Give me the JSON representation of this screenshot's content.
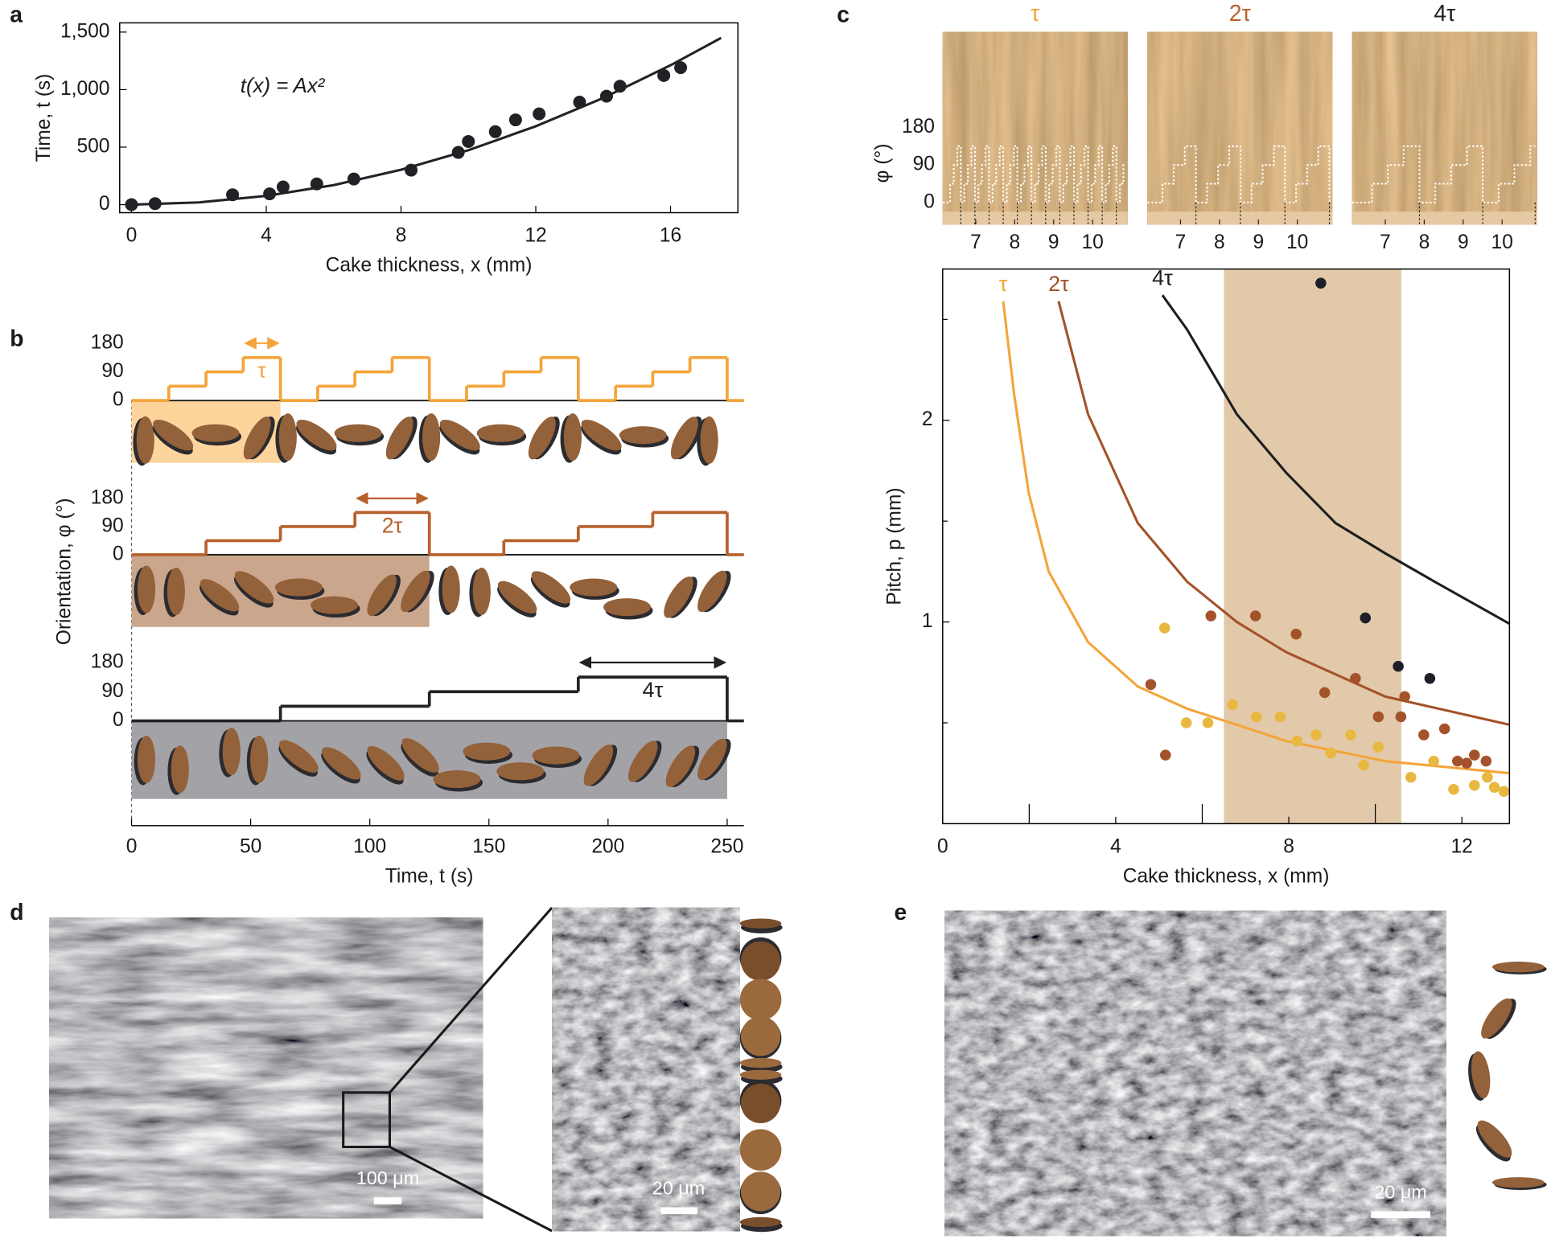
{
  "panel_labels": [
    "a",
    "b",
    "c",
    "d",
    "e"
  ],
  "chart_data": [
    {
      "type": "scatter",
      "xlabel": "Cake thickness, x (mm)",
      "ylabel": "Time, t (s)",
      "annotation": "t(x) = Ax²",
      "xlim": [
        -0.35,
        18
      ],
      "ylim": [
        -70,
        1580
      ],
      "xticks": [
        0,
        4,
        8,
        12,
        16
      ],
      "yticks": [
        0,
        500,
        {
          "value": 1000,
          "label": "1,000"
        },
        {
          "value": 1500,
          "label": "1,500"
        }
      ],
      "series": [
        {
          "mark": "point",
          "color": "#222226",
          "x": [
            0,
            0.7,
            3.0,
            4.1,
            4.5,
            5.5,
            6.6,
            8.3,
            9.7,
            10.0,
            10.8,
            11.4,
            12.1,
            13.3,
            14.1,
            14.5,
            15.8,
            16.3
          ],
          "values": [
            0,
            9,
            86,
            94,
            154,
            180,
            223,
            300,
            454,
            549,
            634,
            737,
            789,
            891,
            943,
            1029,
            1123,
            1191
          ]
        },
        {
          "mark": "line",
          "color": "#222226",
          "x": [
            0,
            2,
            4,
            6,
            8,
            10,
            12,
            14,
            16,
            17.5
          ],
          "values": [
            0,
            19,
            76,
            170,
            303,
            473,
            681,
            927,
            1211,
            1449
          ]
        }
      ]
    },
    {
      "type": "step",
      "xlabel": "Time, t (s)",
      "ylabel": "Orientation, φ (°)",
      "xlim": [
        0,
        257
      ],
      "xticks": [
        0,
        50,
        100,
        150,
        200,
        250
      ],
      "panels": [
        {
          "label": "τ",
          "color": "#f4a43a",
          "shade": "#fdd49c",
          "ylim": [
            0,
            180
          ],
          "yticks": [
            0,
            90,
            180
          ],
          "x": [
            0,
            15.625,
            31.25,
            46.875,
            62.5,
            78.125,
            93.75,
            109.375,
            125,
            140.625,
            156.25,
            171.875,
            187.5,
            203.125,
            218.75,
            234.375,
            250
          ],
          "values": [
            0,
            45,
            90,
            135,
            0,
            45,
            90,
            135,
            0,
            45,
            90,
            135,
            0,
            45,
            90,
            135,
            0
          ]
        },
        {
          "label": "2τ",
          "color": "#b8602c",
          "shade": "#c9a68c",
          "ylim": [
            0,
            180
          ],
          "yticks": [
            0,
            90,
            180
          ],
          "x": [
            0,
            31.25,
            62.5,
            93.75,
            125,
            156.25,
            187.5,
            218.75,
            250
          ],
          "values": [
            0,
            45,
            90,
            135,
            0,
            45,
            90,
            135,
            0
          ]
        },
        {
          "label": "4τ",
          "color": "#222226",
          "shade": "#a3a3a7",
          "ylim": [
            0,
            180
          ],
          "yticks": [
            0,
            90,
            180
          ],
          "x": [
            0,
            62.5,
            125,
            187.5,
            250
          ],
          "values": [
            0,
            45,
            90,
            135,
            0
          ]
        }
      ]
    },
    {
      "type": "photo",
      "ylabel": "φ (°)",
      "xlim": [
        6.15,
        10.9
      ],
      "ylim": [
        -53,
        410
      ],
      "xticks": [
        7,
        8,
        9,
        10
      ],
      "yticks": [
        0,
        90,
        180
      ],
      "panels": [
        {
          "title": "τ",
          "color": "#f4a43a"
        },
        {
          "title": "2τ",
          "color": "#b8602c"
        },
        {
          "title": "4τ",
          "color": "#222226"
        }
      ]
    },
    {
      "type": "scatter",
      "xlabel": "Cake thickness, x (mm)",
      "ylabel": "Pitch, p (mm)",
      "xlim": [
        0,
        13.1
      ],
      "ylim": [
        0,
        2.75
      ],
      "xticks": [
        0,
        4,
        8,
        12
      ],
      "yticks": [
        1,
        2
      ],
      "xminor": [
        2,
        6,
        10
      ],
      "yminor": [
        0.5,
        1.5,
        2.5
      ],
      "highlight_x": [
        6.5,
        10.6
      ],
      "highlight_color": "#e2c9a9",
      "series": [
        {
          "mark": "line",
          "label": "τ",
          "color": "#f4a43a",
          "x": [
            1.4,
            1.65,
            1.99,
            2.45,
            3.36,
            4.51,
            5.65,
            6.8,
            7.94,
            10.23,
            13.11
          ],
          "values": [
            2.59,
            2.13,
            1.64,
            1.25,
            0.9,
            0.68,
            0.57,
            0.49,
            0.41,
            0.31,
            0.25
          ]
        },
        {
          "mark": "line",
          "label": "2τ",
          "color": "#a4522a",
          "x": [
            2.68,
            3.36,
            4.51,
            5.65,
            6.8,
            7.94,
            10.23,
            13.11
          ],
          "values": [
            2.59,
            2.03,
            1.49,
            1.2,
            1.0,
            0.85,
            0.63,
            0.49
          ]
        },
        {
          "mark": "line",
          "label": "4τ",
          "color": "#1e1e1e",
          "x": [
            5.08,
            5.65,
            6.8,
            7.94,
            9.08,
            10.23,
            11.37,
            13.11
          ],
          "values": [
            2.62,
            2.45,
            2.03,
            1.74,
            1.49,
            1.34,
            1.2,
            0.99
          ]
        },
        {
          "mark": "point",
          "color": "#e8b840",
          "x": [
            5.13,
            5.63,
            6.13,
            6.7,
            7.25,
            7.8,
            8.19,
            8.63,
            8.97,
            9.43,
            9.73,
            10.07,
            10.82,
            11.35,
            11.81,
            12.29,
            12.59,
            12.75,
            12.97
          ],
          "values": [
            0.97,
            0.5,
            0.5,
            0.59,
            0.53,
            0.53,
            0.41,
            0.44,
            0.35,
            0.44,
            0.29,
            0.38,
            0.23,
            0.31,
            0.17,
            0.19,
            0.23,
            0.18,
            0.16
          ]
        },
        {
          "mark": "point",
          "color": "#a4522a",
          "x": [
            4.81,
            5.15,
            6.2,
            7.23,
            8.17,
            8.83,
            9.54,
            10.07,
            10.59,
            10.68,
            11.12,
            11.6,
            11.9,
            12.11,
            12.29,
            12.56
          ],
          "values": [
            0.69,
            0.34,
            1.03,
            1.03,
            0.94,
            0.65,
            0.72,
            0.53,
            0.53,
            0.63,
            0.44,
            0.47,
            0.31,
            0.3,
            0.34,
            0.31
          ]
        },
        {
          "mark": "point",
          "color": "#1e1e28",
          "x": [
            8.74,
            9.77,
            10.53,
            11.26
          ],
          "values": [
            2.68,
            1.02,
            0.78,
            0.72
          ]
        }
      ]
    }
  ],
  "scale_bars": [
    "100 μm",
    "20 μm",
    "20 μm"
  ]
}
